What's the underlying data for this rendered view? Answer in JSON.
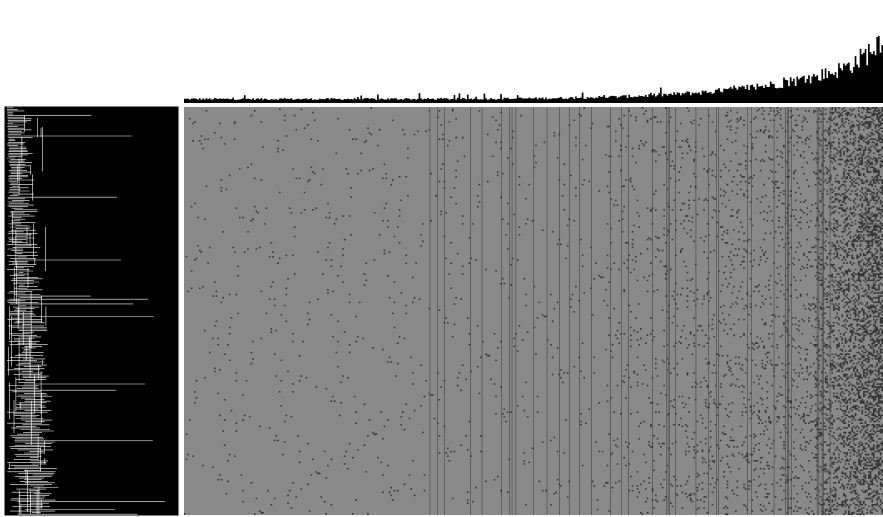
{
  "figure": {
    "kind": "dendrogram-heatmap",
    "colors": {
      "background": "#ffffff",
      "dendrogram_fill": "#000000",
      "dendrogram_lines": "#ffffff",
      "histogram_fill": "#000000",
      "heatmap_base": "#8a8a8a",
      "heatmap_dark": "#1a1a1a"
    },
    "heatmap": {
      "rows": 260,
      "cols": 420,
      "sparse_fraction": 0.012,
      "dense_right_fraction": 0.1
    },
    "top_histogram": {
      "bins": 420,
      "shape": "increasing-exponential"
    },
    "dendrogram": {
      "leaves": 260
    }
  }
}
